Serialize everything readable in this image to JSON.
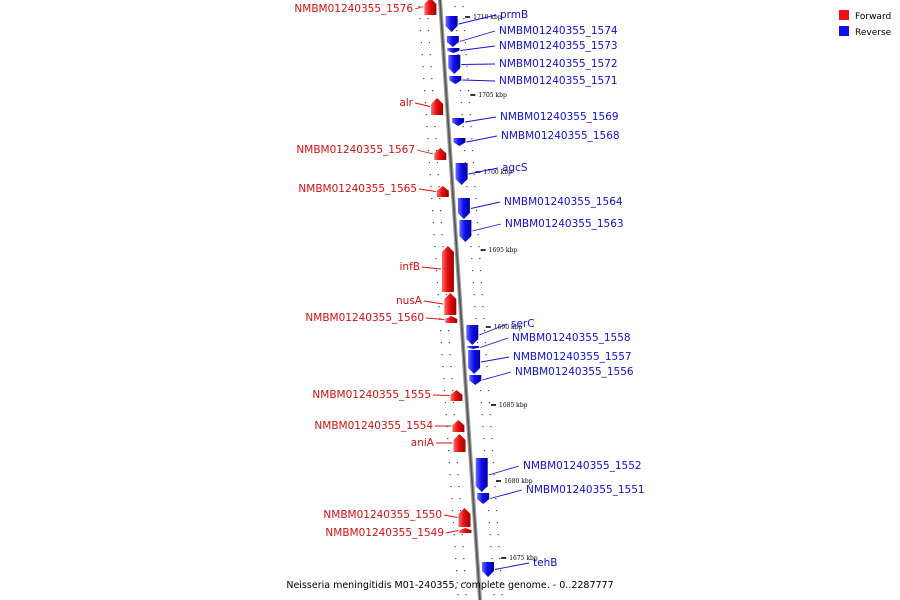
{
  "legend": {
    "forward_label": "Forward",
    "reverse_label": "Reverse",
    "forward_color": "#ee1111",
    "reverse_color": "#1111ee"
  },
  "caption": "Neisseria meningitidis M01-240355, complete genome. - 0..2287777",
  "scale_ticks": [
    {
      "label": "1710 kbp",
      "kbp": 1710
    },
    {
      "label": "1705 kbp",
      "kbp": 1705
    },
    {
      "label": "1700 kbp",
      "kbp": 1700
    },
    {
      "label": "1695 kbp",
      "kbp": 1695
    },
    {
      "label": "1690 kbp",
      "kbp": 1690
    },
    {
      "label": "1685 kbp",
      "kbp": 1685
    },
    {
      "label": "1680 kbp",
      "kbp": 1680
    },
    {
      "label": "1675 kbp",
      "kbp": 1675
    }
  ],
  "genes": [
    {
      "name": "NMBM01240355_1576",
      "strand": "forward"
    },
    {
      "name": "prmB",
      "strand": "reverse"
    },
    {
      "name": "NMBM01240355_1574",
      "strand": "reverse"
    },
    {
      "name": "NMBM01240355_1573",
      "strand": "reverse"
    },
    {
      "name": "NMBM01240355_1572",
      "strand": "reverse"
    },
    {
      "name": "NMBM01240355_1571",
      "strand": "reverse"
    },
    {
      "name": "alr",
      "strand": "forward"
    },
    {
      "name": "NMBM01240355_1569",
      "strand": "reverse"
    },
    {
      "name": "NMBM01240355_1568",
      "strand": "reverse"
    },
    {
      "name": "NMBM01240355_1567",
      "strand": "forward"
    },
    {
      "name": "agcS",
      "strand": "reverse"
    },
    {
      "name": "NMBM01240355_1565",
      "strand": "forward"
    },
    {
      "name": "NMBM01240355_1564",
      "strand": "reverse"
    },
    {
      "name": "NMBM01240355_1563",
      "strand": "reverse"
    },
    {
      "name": "infB",
      "strand": "forward"
    },
    {
      "name": "nusA",
      "strand": "forward"
    },
    {
      "name": "NMBM01240355_1560",
      "strand": "forward"
    },
    {
      "name": "serC",
      "strand": "reverse"
    },
    {
      "name": "NMBM01240355_1558",
      "strand": "reverse"
    },
    {
      "name": "NMBM01240355_1557",
      "strand": "reverse"
    },
    {
      "name": "NMBM01240355_1556",
      "strand": "reverse"
    },
    {
      "name": "NMBM01240355_1555",
      "strand": "forward"
    },
    {
      "name": "NMBM01240355_1554",
      "strand": "forward"
    },
    {
      "name": "aniA",
      "strand": "forward"
    },
    {
      "name": "NMBM01240355_1552",
      "strand": "reverse"
    },
    {
      "name": "NMBM01240355_1551",
      "strand": "reverse"
    },
    {
      "name": "NMBM01240355_1550",
      "strand": "forward"
    },
    {
      "name": "NMBM01240355_1549",
      "strand": "forward"
    },
    {
      "name": "tehB",
      "strand": "reverse"
    }
  ]
}
